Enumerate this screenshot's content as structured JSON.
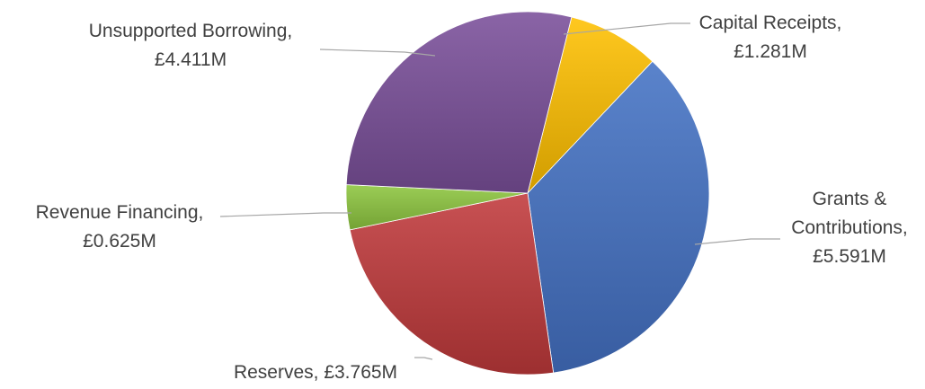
{
  "chart_data": {
    "type": "pie",
    "title": "",
    "unit": "£M",
    "start_angle_deg": 14,
    "direction": "clockwise",
    "legend": "none",
    "slices": [
      {
        "name": "Capital Receipts",
        "value": 1.281,
        "color": "#ffc000",
        "label_lines": [
          "Capital Receipts,",
          "£1.281M"
        ]
      },
      {
        "name": "Grants & Contributions",
        "value": 5.591,
        "color": "#4472c4",
        "label_lines": [
          "Grants &",
          "Contributions,",
          "£5.591M"
        ]
      },
      {
        "name": "Reserves",
        "value": 3.765,
        "color": "#c0393b",
        "label_lines": [
          "Reserves, £3.765M"
        ]
      },
      {
        "name": "Revenue Financing",
        "value": 0.625,
        "color": "#8dc63f",
        "label_lines": [
          "Revenue Financing,",
          "£0.625M"
        ]
      },
      {
        "name": "Unsupported Borrowing",
        "value": 4.411,
        "color": "#7a4f9a",
        "label_lines": [
          "Unsupported Borrowing,",
          "£4.411M"
        ]
      }
    ]
  }
}
